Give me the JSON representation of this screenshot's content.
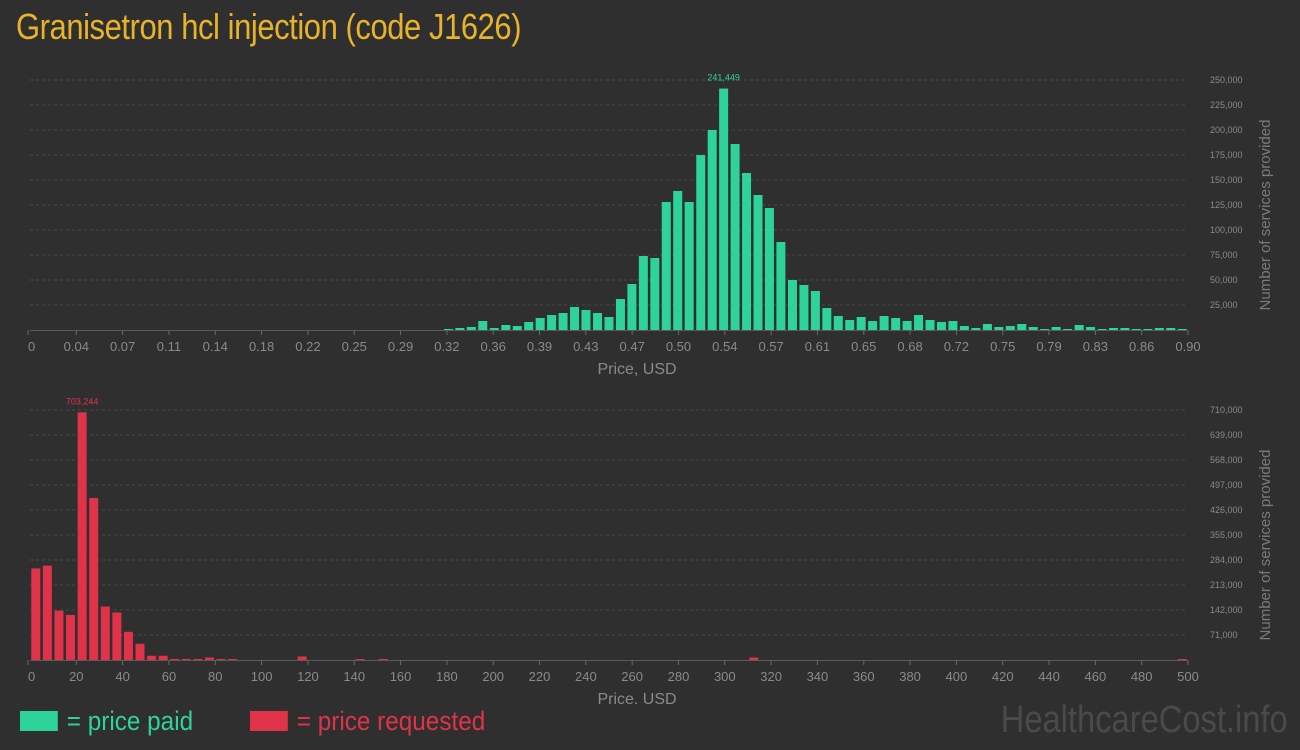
{
  "title": "Granisetron hcl injection (code J1626)",
  "legend": {
    "paid": "= price paid",
    "requested": "= price requested"
  },
  "watermark": "HealthcareCost.info",
  "colors": {
    "paid": "#2ed39a",
    "requested": "#e0334a",
    "title": "#e8b32a",
    "background": "#2f2f2f"
  },
  "chart_data": [
    {
      "type": "bar",
      "name": "price-paid",
      "xlabel": "Price, USD",
      "ylabel": "Number of services provided",
      "xlim": [
        0,
        0.9
      ],
      "ylim": [
        0,
        250000
      ],
      "grid": true,
      "x_ticks": [
        "0",
        "0.04",
        "0.07",
        "0.11",
        "0.14",
        "0.18",
        "0.22",
        "0.25",
        "0.29",
        "0.32",
        "0.36",
        "0.39",
        "0.43",
        "0.47",
        "0.50",
        "0.54",
        "0.57",
        "0.61",
        "0.65",
        "0.68",
        "0.72",
        "0.75",
        "0.79",
        "0.83",
        "0.86",
        "0.90"
      ],
      "y_ticks": [
        "25,000",
        "50,000",
        "75,000",
        "100,000",
        "125,000",
        "150,000",
        "175,000",
        "200,000",
        "225,000",
        "250,000"
      ],
      "peak_label": "241,449",
      "bins": 101,
      "x": [
        0.3252,
        0.3341,
        0.343,
        0.3519,
        0.3608,
        0.3698,
        0.3787,
        0.3876,
        0.3965,
        0.4054,
        0.4143,
        0.4232,
        0.4321,
        0.4411,
        0.45,
        0.4589,
        0.4678,
        0.4767,
        0.4856,
        0.4945,
        0.5034,
        0.5123,
        0.5213,
        0.5302,
        0.5391,
        0.548,
        0.5569,
        0.5658,
        0.5747,
        0.5836,
        0.5926,
        0.6015,
        0.6104,
        0.6193,
        0.6282,
        0.6371,
        0.646,
        0.6549,
        0.6638,
        0.6728,
        0.6817,
        0.6906,
        0.6995,
        0.7084,
        0.7173,
        0.7262,
        0.7351,
        0.7441,
        0.753,
        0.7619,
        0.7708,
        0.7797,
        0.7886,
        0.7975,
        0.8064,
        0.8154,
        0.8243,
        0.8332,
        0.8421,
        0.851,
        0.8599,
        0.8688,
        0.8777,
        0.8866,
        0.8955
      ],
      "values": [
        1000,
        2000,
        3000,
        9000,
        2000,
        5000,
        4000,
        8000,
        12000,
        15000,
        17000,
        23000,
        20000,
        17000,
        13000,
        31000,
        46000,
        74000,
        72000,
        128000,
        139000,
        128000,
        175000,
        200000,
        241449,
        186000,
        157000,
        135000,
        122000,
        88000,
        50000,
        45000,
        39000,
        22000,
        14000,
        10000,
        13000,
        9000,
        14000,
        12000,
        9000,
        15000,
        10000,
        8000,
        9000,
        4000,
        2000,
        6000,
        3000,
        4000,
        6000,
        3000,
        1000,
        3000,
        1000,
        5000,
        3000,
        1000,
        2000,
        2000,
        1000,
        1000,
        2000,
        2000,
        1000
      ]
    },
    {
      "type": "bar",
      "name": "price-requested",
      "xlabel": "Price, USD",
      "ylabel": "Number of services provided",
      "xlim": [
        0,
        500
      ],
      "ylim": [
        0,
        710000
      ],
      "grid": true,
      "x_ticks": [
        "0",
        "20",
        "40",
        "60",
        "80",
        "100",
        "120",
        "140",
        "160",
        "180",
        "200",
        "220",
        "240",
        "260",
        "280",
        "300",
        "320",
        "340",
        "360",
        "380",
        "400",
        "420",
        "440",
        "460",
        "480",
        "500"
      ],
      "y_ticks": [
        "71,000",
        "142,000",
        "213,000",
        "284,000",
        "355,000",
        "426,000",
        "497,000",
        "568,000",
        "639,000",
        "710,000"
      ],
      "peak_label": "703,244",
      "x": [
        2.5,
        7.5,
        12.5,
        17.5,
        22.5,
        27.5,
        32.5,
        37.5,
        42.5,
        47.5,
        52.5,
        57.5,
        62.5,
        67.5,
        72.5,
        77.5,
        82.5,
        87.5,
        117.5,
        142.5,
        152.5,
        312.5,
        497.5
      ],
      "values": [
        260000,
        268000,
        140000,
        128000,
        703244,
        460000,
        152000,
        135000,
        80000,
        46000,
        12000,
        12000,
        3000,
        3000,
        1500,
        7000,
        2000,
        1000,
        10000,
        2000,
        2500,
        7000,
        2000
      ]
    }
  ]
}
